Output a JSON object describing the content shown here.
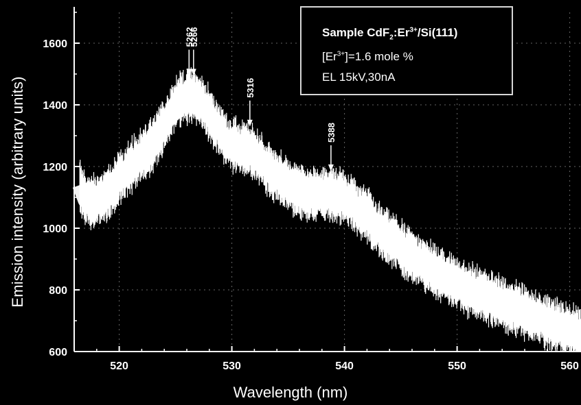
{
  "chart_data": {
    "type": "line",
    "xlabel": "Wavelength (nm)",
    "ylabel": "Emission intensity (arbitrary units)",
    "xlim": [
      516,
      561
    ],
    "ylim": [
      600,
      1700
    ],
    "x_ticks": [
      520,
      530,
      540,
      550,
      560
    ],
    "x_tick_labels": [
      "520",
      "530",
      "540",
      "550",
      "560"
    ],
    "y_ticks": [
      600,
      800,
      1000,
      1200,
      1400,
      1600
    ],
    "y_tick_labels": [
      "600",
      "800",
      "1000",
      "1200",
      "1400",
      "1600"
    ],
    "grid": true,
    "legend": {
      "position": "top-right",
      "sample_prefix": "Sample CdF",
      "sample_sub": "2",
      "sample_mid": ":Er",
      "sample_sup": "3+",
      "sample_suffix": "/Si(111)",
      "conc_prefix": "[Er",
      "conc_sup": "3+",
      "conc_suffix": "]=1.6 mole %",
      "conditions": "EL 15kV,30nA"
    },
    "annotations": [
      {
        "label": "5262",
        "x": 526.2,
        "y": 1490
      },
      {
        "label": "5266",
        "x": 526.6,
        "y": 1490
      },
      {
        "label": "5316",
        "x": 531.6,
        "y": 1325
      },
      {
        "label": "5388",
        "x": 538.8,
        "y": 1180
      }
    ],
    "series": [
      {
        "color": "#ffffff",
        "x": [
          516.5,
          517,
          518,
          519,
          520,
          521,
          522,
          523,
          524,
          524.5,
          525,
          525.5,
          526,
          526.5,
          527,
          527.5,
          528,
          529,
          530,
          531,
          531.6,
          532,
          533,
          534,
          535,
          536,
          537,
          538,
          539,
          540,
          541,
          542,
          543,
          544,
          545,
          546,
          547,
          548,
          549,
          550,
          551,
          552,
          553,
          554,
          555,
          556,
          557,
          558,
          559,
          560,
          561
        ],
        "y": [
          1140,
          1090,
          1085,
          1110,
          1160,
          1200,
          1235,
          1270,
          1330,
          1370,
          1400,
          1420,
          1430,
          1430,
          1420,
          1400,
          1370,
          1310,
          1270,
          1260,
          1255,
          1240,
          1200,
          1170,
          1140,
          1120,
          1110,
          1110,
          1110,
          1100,
          1070,
          1040,
          1000,
          970,
          940,
          910,
          885,
          860,
          840,
          820,
          800,
          785,
          770,
          755,
          740,
          725,
          710,
          695,
          680,
          665,
          650
        ]
      }
    ]
  }
}
